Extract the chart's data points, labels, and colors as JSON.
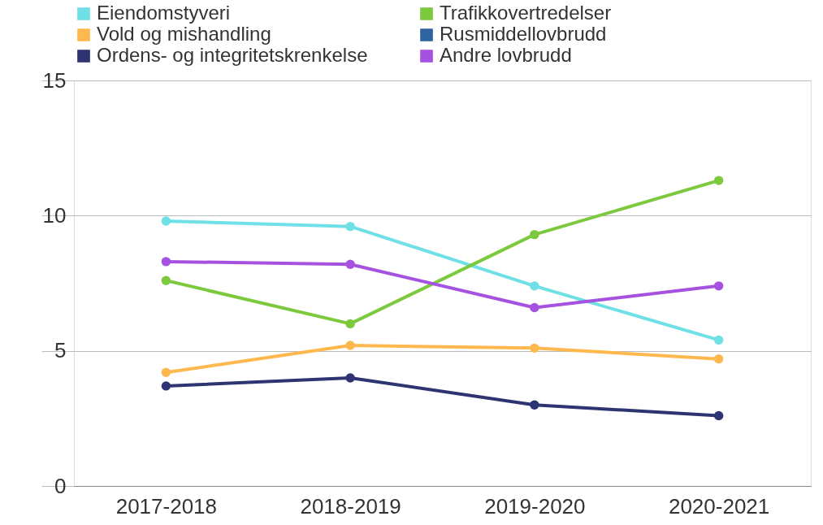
{
  "chart_data": {
    "type": "line",
    "categories": [
      "2017-2018",
      "2018-2019",
      "2019-2020",
      "2020-2021"
    ],
    "series": [
      {
        "name": "Eiendomstyveri",
        "color": "#6ee0e6",
        "values": [
          9.8,
          9.6,
          7.4,
          5.4
        ]
      },
      {
        "name": "Trafikkovertredelser",
        "color": "#7dc93e",
        "values": [
          7.6,
          6.0,
          9.3,
          11.3
        ]
      },
      {
        "name": "Vold og mishandling",
        "color": "#ffb84d",
        "values": [
          4.2,
          5.2,
          5.1,
          4.7
        ]
      },
      {
        "name": "Rusmiddellovbrudd",
        "color": "#2e64a0",
        "values": [
          null,
          null,
          null,
          null
        ]
      },
      {
        "name": "Ordens- og integritetskrenkelse",
        "color": "#2e3371",
        "values": [
          3.7,
          4.0,
          3.0,
          2.6
        ]
      },
      {
        "name": "Andre lovbrudd",
        "color": "#a652e0",
        "values": [
          8.3,
          8.2,
          6.6,
          7.4
        ]
      }
    ],
    "ylim": [
      0,
      15
    ],
    "yticks": [
      0,
      5,
      10,
      15
    ],
    "grid": "y",
    "legend": "top",
    "marker": "circle",
    "line_style": "solid"
  }
}
